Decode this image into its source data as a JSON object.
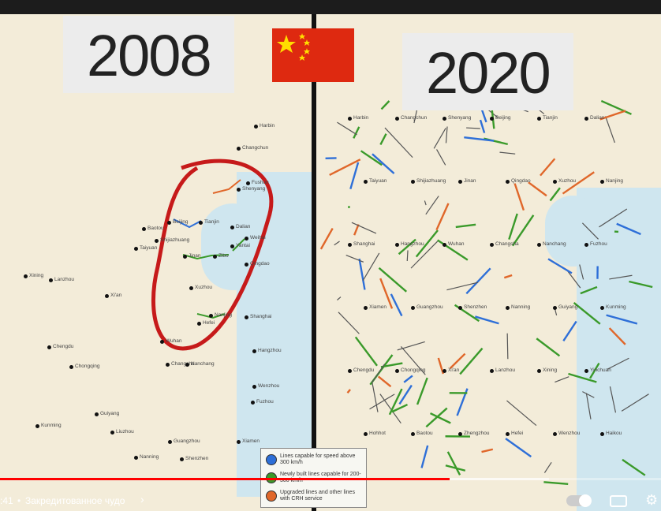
{
  "video": {
    "year_left": "2008",
    "year_right": "2020",
    "legend": [
      {
        "color": "#2e6fd8",
        "text": "Lines capable for speed above 300 km/h"
      },
      {
        "color": "#3a9a2a",
        "text": "Newly built lines capable for 200-300 km/h"
      },
      {
        "color": "#e0672a",
        "text": "Upgraded lines and other lines with CRH service"
      }
    ]
  },
  "left_cities": [
    "Harbin",
    "Changchun",
    "Fushun",
    "Shenyang",
    "Beijing",
    "Tianjin",
    "Taiyuan",
    "Shijiazhuang",
    "Baotou",
    "Dalian",
    "Weihai",
    "Yantai",
    "Qingdao",
    "Jinan",
    "Zibo",
    "Xuzhou",
    "Hefei",
    "Nanjing",
    "Shanghai",
    "Wuhan",
    "Changsha",
    "Nanchang",
    "Chongqing",
    "Chengdu",
    "Xi'an",
    "Lanzhou",
    "Xining",
    "Guiyang",
    "Kunming",
    "Liuzhou",
    "Guangzhou",
    "Shenzhen",
    "Nanning",
    "Fuzhou",
    "Hangzhou",
    "Wenzhou",
    "Xiamen"
  ],
  "right_cities": [
    "Harbin",
    "Changchun",
    "Shenyang",
    "Beijing",
    "Tianjin",
    "Dalian",
    "Taiyuan",
    "Shijiazhuang",
    "Jinan",
    "Qingdao",
    "Xuzhou",
    "Nanjing",
    "Shanghai",
    "Hangzhou",
    "Wuhan",
    "Changsha",
    "Nanchang",
    "Fuzhou",
    "Xiamen",
    "Guangzhou",
    "Shenzhen",
    "Nanning",
    "Guiyang",
    "Kunming",
    "Chengdu",
    "Chongqing",
    "Xi'an",
    "Lanzhou",
    "Xining",
    "Yinchuan",
    "Hohhot",
    "Baotou",
    "Zhengzhou",
    "Hefei",
    "Wenzhou",
    "Haikou"
  ],
  "player": {
    "time": ":41",
    "chapter": "Закредитованное чудо",
    "progress_fraction": 0.68,
    "buffer_fraction": 0.83
  }
}
